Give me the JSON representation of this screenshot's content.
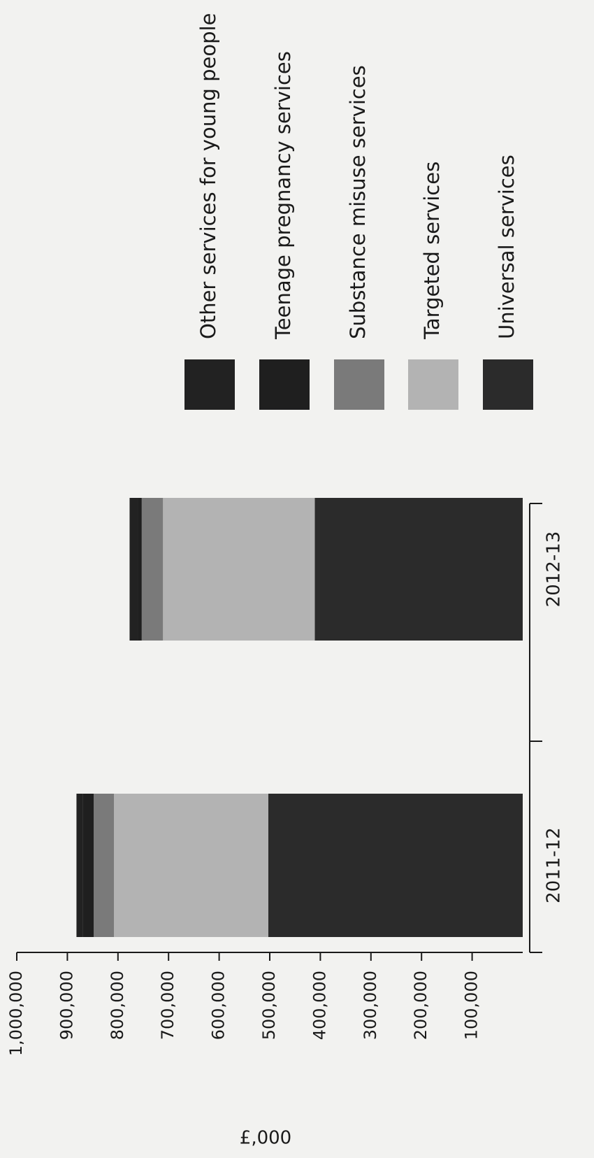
{
  "chart_data": {
    "type": "bar",
    "stacked": true,
    "orientation": "rotated",
    "categories": [
      "2011-12",
      "2012-13"
    ],
    "series": [
      {
        "name": "Universal services",
        "values": [
          503000,
          411000
        ],
        "color": "#2b2b2b"
      },
      {
        "name": "Targeted services",
        "values": [
          305000,
          300000
        ],
        "color": "#b3b3b3"
      },
      {
        "name": "Substance misuse services",
        "values": [
          40000,
          42000
        ],
        "color": "#7a7a7a"
      },
      {
        "name": "Teenage pregnancy services",
        "values": [
          22000,
          8000
        ],
        "color": "#1f1f1f"
      },
      {
        "name": "Other services for young people",
        "values": [
          12000,
          16000
        ],
        "color": "#222222"
      }
    ],
    "ylabel": "£,000",
    "ylim": [
      0,
      1000000
    ],
    "y_ticks": [
      100000,
      200000,
      300000,
      400000,
      500000,
      600000,
      700000,
      800000,
      900000,
      1000000
    ],
    "y_tick_labels": [
      "100,000",
      "200,000",
      "300,000",
      "400,000",
      "500,000",
      "600,000",
      "700,000",
      "800,000",
      "900,000",
      "1,000,000"
    ],
    "legend_position": "right",
    "grid": false
  }
}
